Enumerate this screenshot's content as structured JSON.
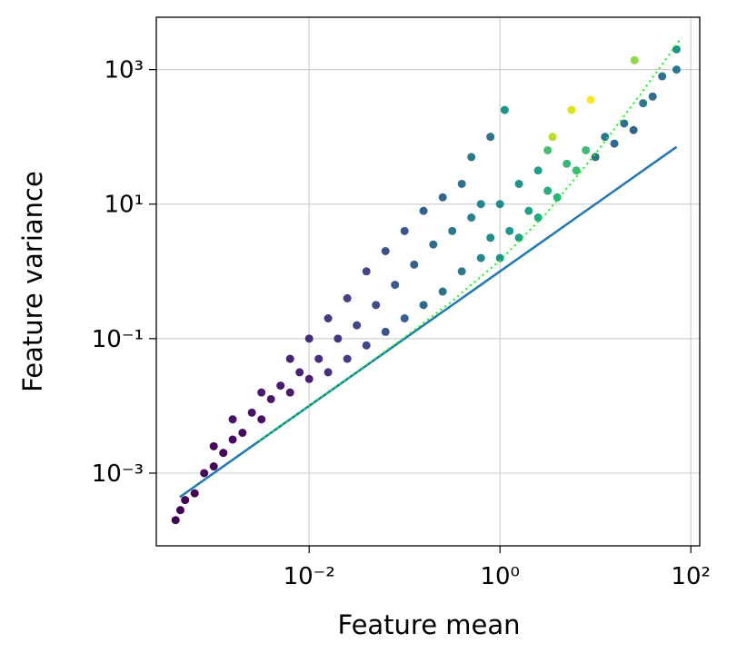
{
  "chart_data": {
    "type": "scatter",
    "xlabel": "Feature mean",
    "ylabel": "Feature variance",
    "xscale": "log",
    "yscale": "log",
    "grid": true,
    "xlim": [
      0.00025,
      124
    ],
    "ylim": [
      8.3e-05,
      6000
    ],
    "xticks": [
      {
        "value": 0.01,
        "label": "10⁻²"
      },
      {
        "value": 1,
        "label": "10⁰"
      },
      {
        "value": 100,
        "label": "10²"
      }
    ],
    "yticks": [
      {
        "value": 0.001,
        "label": "10⁻³"
      },
      {
        "value": 0.1,
        "label": "10⁻¹"
      },
      {
        "value": 10,
        "label": "10¹"
      },
      {
        "value": 1000,
        "label": "10³"
      }
    ],
    "x": [
      0.000398,
      0.000447,
      0.000501,
      0.000631,
      0.000794,
      0.001,
      0.001,
      0.00126,
      0.00158,
      0.00158,
      0.002,
      0.00251,
      0.00316,
      0.00316,
      0.00398,
      0.00501,
      0.00631,
      0.00631,
      0.00794,
      0.01,
      0.01,
      0.0126,
      0.0158,
      0.0158,
      0.02,
      0.0251,
      0.0251,
      0.0316,
      0.0398,
      0.0398,
      0.0501,
      0.0631,
      0.0631,
      0.0794,
      0.1,
      0.1,
      0.126,
      0.158,
      0.158,
      0.2,
      0.251,
      0.251,
      0.316,
      0.398,
      0.398,
      0.501,
      0.631,
      0.631,
      0.794,
      1,
      1,
      1.26,
      1.58,
      1.58,
      2,
      2.51,
      2.51,
      3.16,
      3.98,
      5.01,
      6.31,
      7.94,
      10,
      12.6,
      15.8,
      20,
      25.1,
      31.6,
      39.8,
      50.1,
      70.8,
      0.501,
      1.12,
      0.794,
      3.16,
      8.91,
      5.62,
      25.7,
      70.8,
      3.55
    ],
    "y": [
      0.0002,
      0.000282,
      0.000398,
      0.000501,
      0.001,
      0.00126,
      0.00251,
      0.002,
      0.00316,
      0.00631,
      0.00398,
      0.00794,
      0.00631,
      0.0158,
      0.0126,
      0.02,
      0.0158,
      0.0501,
      0.0316,
      0.0251,
      0.1,
      0.0501,
      0.0316,
      0.2,
      0.1,
      0.0501,
      0.398,
      0.158,
      0.0794,
      1,
      0.316,
      0.126,
      2,
      0.631,
      0.2,
      3.98,
      1.26,
      0.316,
      7.94,
      2.51,
      0.501,
      12.6,
      3.98,
      1,
      20,
      6.31,
      1.58,
      10,
      3.16,
      1.58,
      10,
      3.98,
      3.16,
      20,
      7.94,
      6.31,
      31.6,
      15.8,
      12.6,
      39.8,
      31.6,
      63.1,
      50.1,
      100,
      79.4,
      158,
      126,
      316,
      398,
      794,
      2000,
      50.1,
      251,
      100,
      63.1,
      355,
      251,
      1380,
      1000,
      100
    ],
    "colors": [
      "#440154",
      "#440154",
      "#440154",
      "#440154",
      "#450559",
      "#450559",
      "#46085c",
      "#450559",
      "#460b5e",
      "#471365",
      "#460b5e",
      "#471365",
      "#471164",
      "#481a6c",
      "#481769",
      "#481d6f",
      "#481a6c",
      "#482475",
      "#482173",
      "#481f70",
      "#472a7a",
      "#472c7a",
      "#46307e",
      "#443983",
      "#453781",
      "#433d84",
      "#424086",
      "#404588",
      "#3e4989",
      "#3f4788",
      "#3c4f8a",
      "#3a548c",
      "#3b528b",
      "#38598c",
      "#355f8d",
      "#38588c",
      "#33638d",
      "#31688e",
      "#34618d",
      "#2f6c8e",
      "#2c718e",
      "#31678e",
      "#2a768e",
      "#287c8e",
      "#2e6f8e",
      "#26818e",
      "#24868e",
      "#25848e",
      "#228b8d",
      "#21918c",
      "#228c8d",
      "#1f968b",
      "#1e9b8a",
      "#21918c",
      "#1fa088",
      "#22a785",
      "#1f9e89",
      "#25ac82",
      "#2ab07f",
      "#35b779",
      "#3dbc74",
      "#3bbb75",
      "#2c718e",
      "#2a788e",
      "#31688e",
      "#2c718e",
      "#33638d",
      "#2a788e",
      "#2f6c8e",
      "#2c718e",
      "#21918c",
      "#2a788e",
      "#21918c",
      "#2c718e",
      "#44bf70",
      "#fde725",
      "#dde318",
      "#8fd744",
      "#2a788e",
      "#b5de2b"
    ],
    "lines": [
      {
        "color": "#1f77b4",
        "style": "solid",
        "x": [
          0.00044,
          71
        ],
        "y": [
          0.00044,
          71
        ]
      },
      {
        "color": "#00ff00",
        "style": "dotted",
        "x": [
          0.003,
          0.01,
          0.03,
          0.1,
          0.3,
          1,
          3,
          10,
          30,
          80
        ],
        "y": [
          0.003,
          0.01005,
          0.0304,
          0.1045,
          0.341,
          1.45,
          7.09,
          55.5,
          439,
          2989
        ]
      }
    ]
  }
}
